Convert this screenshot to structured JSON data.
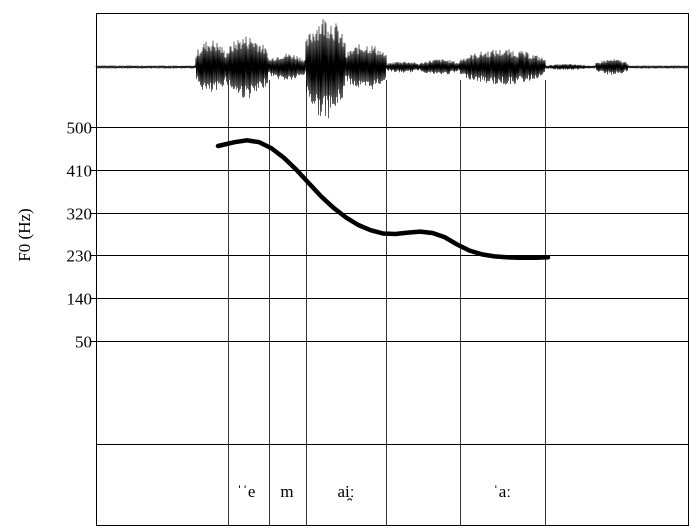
{
  "chart_data": {
    "type": "line",
    "ylabel": "F0 (Hz)",
    "xlabel": "",
    "yticks": [
      "500",
      "410",
      "320",
      "230",
      "140",
      "50"
    ],
    "ytick_values": [
      500,
      410,
      320,
      230,
      140,
      50
    ],
    "ylim": [
      50,
      500
    ],
    "grid": true,
    "waveform": true,
    "segments": [
      {
        "label": "ˈˈe",
        "start": 0.0,
        "end": 0.0
      },
      {
        "label": "m",
        "start": 0.0,
        "end": 0.0
      },
      {
        "label": "ai̯ː",
        "start": 0.0,
        "end": 0.0
      },
      {
        "label": "",
        "start": 0.0,
        "end": 0.0
      },
      {
        "label": "ˈaː",
        "start": 0.0,
        "end": 0.0
      }
    ],
    "series": [
      {
        "values": [
          [
            0.0,
            460
          ],
          [
            0.04,
            468
          ],
          [
            0.07,
            472
          ],
          [
            0.1,
            468
          ],
          [
            0.13,
            455
          ],
          [
            0.16,
            435
          ],
          [
            0.19,
            410
          ],
          [
            0.22,
            382
          ],
          [
            0.25,
            354
          ],
          [
            0.28,
            330
          ],
          [
            0.31,
            310
          ],
          [
            0.34,
            294
          ],
          [
            0.37,
            283
          ],
          [
            0.4,
            276
          ],
          [
            0.43,
            275
          ],
          [
            0.46,
            278
          ],
          [
            0.49,
            280
          ],
          [
            0.52,
            277
          ],
          [
            0.55,
            268
          ],
          [
            0.58,
            253
          ],
          [
            0.61,
            240
          ],
          [
            0.64,
            232
          ],
          [
            0.67,
            228
          ],
          [
            0.7,
            226
          ],
          [
            0.73,
            225
          ],
          [
            0.77,
            225
          ],
          [
            0.8,
            226
          ]
        ]
      }
    ]
  }
}
